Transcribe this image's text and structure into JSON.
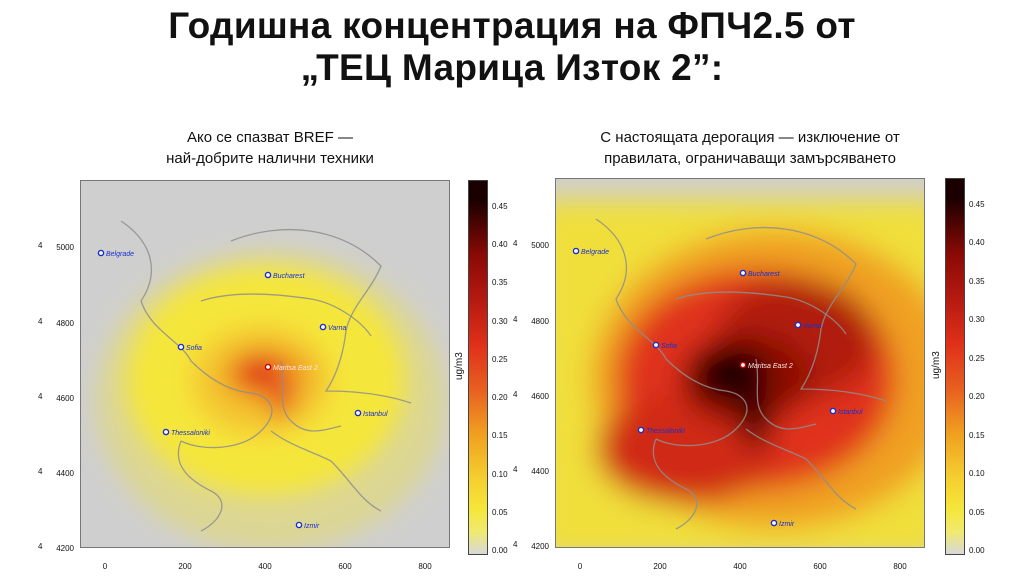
{
  "title": {
    "line1": "Годишна концентрация на ФПЧ2.5 от",
    "line2": "„ТЕЦ Марица Изток 2”:"
  },
  "panels": [
    {
      "subtitle_line1": "Ако се спазват BREF —",
      "subtitle_line2": "най-добрите налични техники",
      "scenario": "low",
      "cities": [
        "Belgrade",
        "Bucharest",
        "Varna",
        "Sofia",
        "Maritsa East 2",
        "Istanbul",
        "Thessaloniki",
        "Izmir"
      ]
    },
    {
      "subtitle_line1": "С настоящата дерогация — изключение от",
      "subtitle_line2": "правилата, ограничаващи замърсяването",
      "scenario": "high",
      "cities": [
        "Belgrade",
        "Bucharest",
        "Varna",
        "Sofia",
        "Maritsa East 2",
        "Istanbul",
        "Thessaloniki",
        "Izmir"
      ]
    }
  ],
  "axes": {
    "x_ticks": [
      "0",
      "200",
      "400",
      "600",
      "800"
    ],
    "y_ticks": [
      "5000",
      "4800",
      "4600",
      "4400",
      "4200"
    ],
    "y_prefix": "4"
  },
  "colorbar": {
    "unit": "ug/m3",
    "ticks": [
      "0.45",
      "0.40",
      "0.35",
      "0.30",
      "0.25",
      "0.20",
      "0.15",
      "0.10",
      "0.05",
      "0.00"
    ]
  },
  "colors": {
    "background_grey": "#cfcfcf",
    "yellow": "#f5e63a",
    "orange": "#f0a020",
    "red": "#e0301a",
    "darkred": "#8a0a05",
    "black": "#1a0000",
    "city_dot": "#1a2fd0"
  }
}
